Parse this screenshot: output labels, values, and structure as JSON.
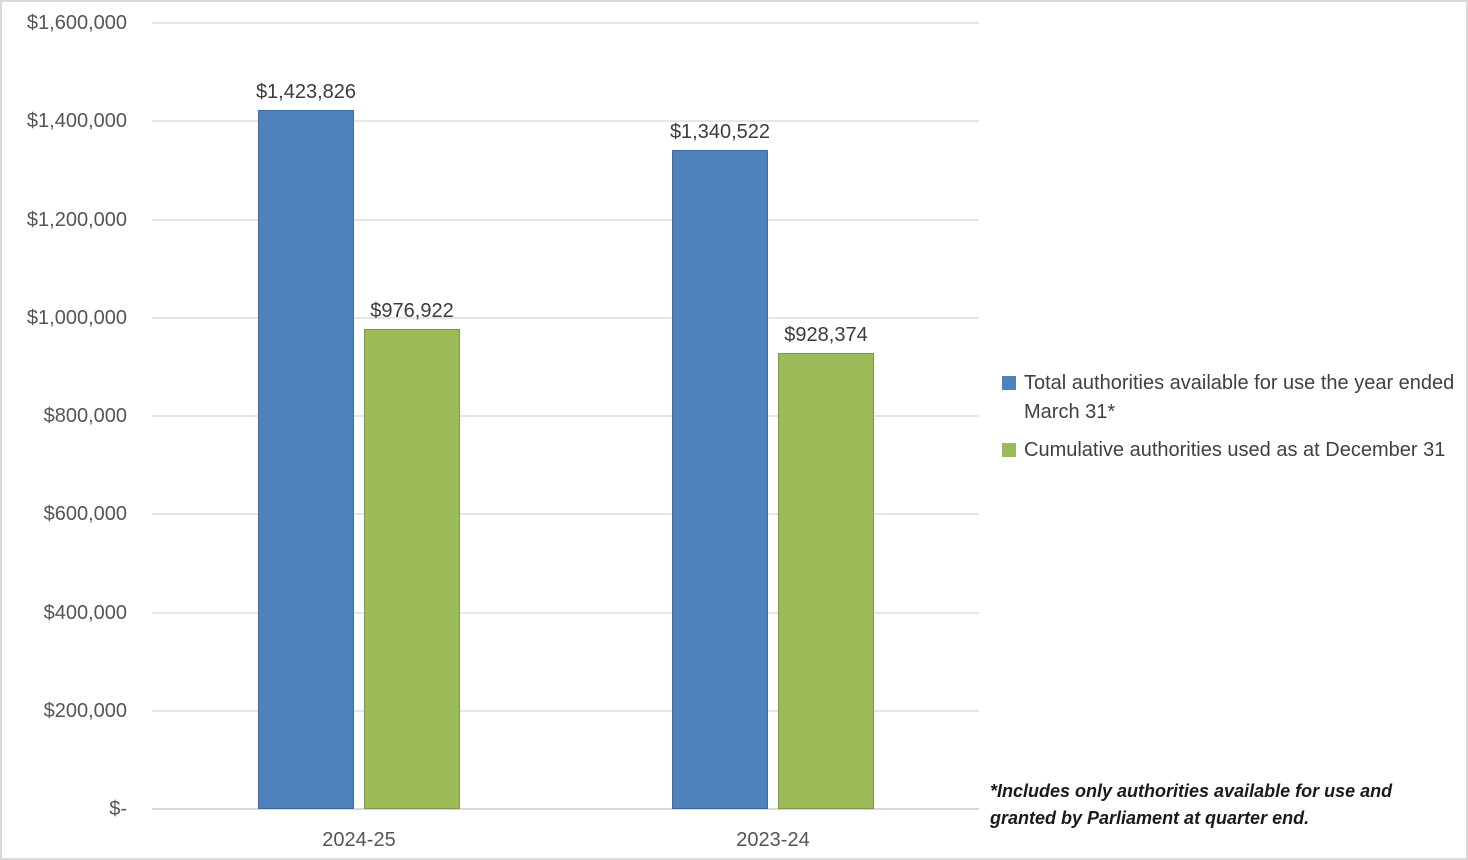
{
  "chart_data": {
    "type": "bar",
    "categories": [
      "2024-25",
      "2023-24"
    ],
    "series": [
      {
        "name": "Total authorities available for use the year ended March 31*",
        "color": "#4f81bd",
        "values": [
          1423826,
          1340522
        ],
        "value_labels": [
          "$1,423,826",
          "$1,340,522"
        ]
      },
      {
        "name": "Cumulative authorities used as at December 31",
        "color": "#9bbb59",
        "values": [
          976922,
          928374
        ],
        "value_labels": [
          "$976,922",
          "$928,374"
        ]
      }
    ],
    "title": "",
    "xlabel": "",
    "ylabel": "",
    "ylim": [
      0,
      1600000
    ],
    "ytick_interval": 200000,
    "ytick_labels": [
      "$-",
      "$200,000",
      "$400,000",
      "$600,000",
      "$800,000",
      "$1,000,000",
      "$1,200,000",
      "$1,400,000",
      "$1,600,000"
    ],
    "grid": true,
    "legend_position": "right"
  },
  "footnote": "*Includes only authorities available for use and granted by Parliament at quarter end.",
  "colors": {
    "series_blue": "#4f81bd",
    "series_green": "#9bbb59",
    "gridline": "#e6e6e6",
    "axis_line": "#d9d9d9",
    "tick_label_text": "#555555",
    "data_label_text": "#3b3b3b",
    "legend_text": "#404040",
    "footnote_text": "#1a1a1a",
    "frame_border": "#d9d9d9",
    "background": "#ffffff"
  }
}
